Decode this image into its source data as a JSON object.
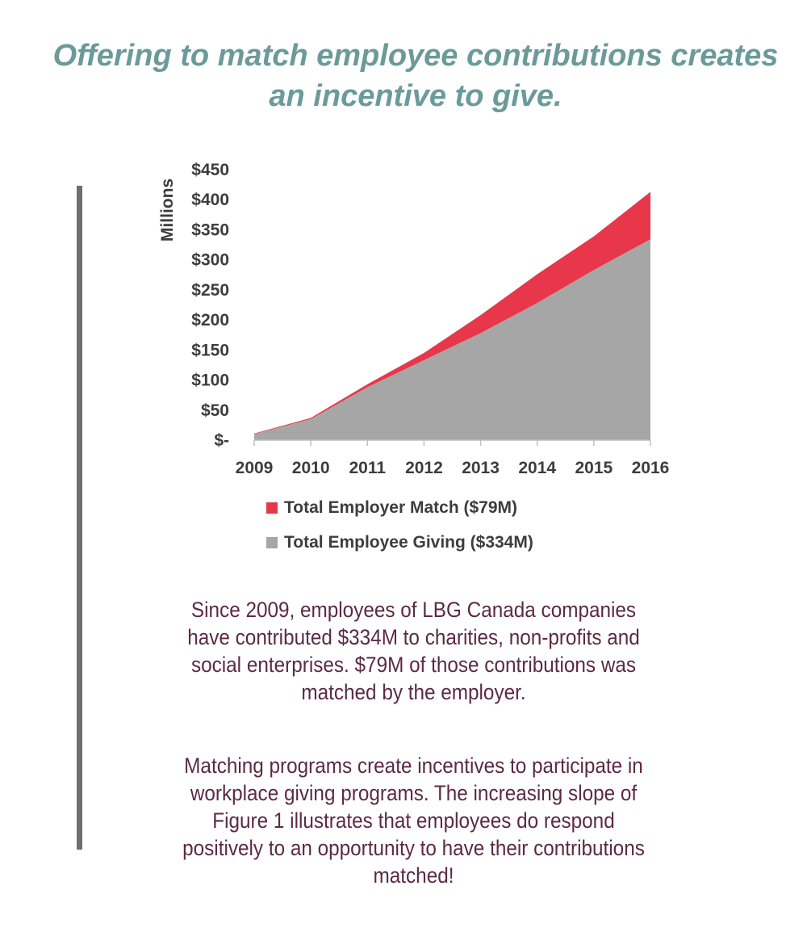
{
  "headline": {
    "line1": "Offering to match employee contributions creates",
    "line2": "an incentive to give."
  },
  "colors": {
    "headline": "#6b9a9a",
    "employer_match": "#e8374a",
    "employee_giving": "#a6a6a6",
    "body_text": "#5b2a45",
    "side_rule": "#6f6f6f"
  },
  "chart_data": {
    "type": "area",
    "stacked": true,
    "title": "",
    "xlabel": "",
    "ylabel": "Millions",
    "categories": [
      "2009",
      "2010",
      "2011",
      "2012",
      "2013",
      "2014",
      "2015",
      "2016"
    ],
    "ylim": [
      0,
      450
    ],
    "yticks": [
      0,
      50,
      100,
      150,
      200,
      250,
      300,
      350,
      400,
      450
    ],
    "ytick_labels": [
      "$-",
      "$50",
      "$100",
      "$150",
      "$200",
      "$250",
      "$300",
      "$350",
      "$400",
      "$450"
    ],
    "grid": false,
    "legend_position": "bottom",
    "series": [
      {
        "name": "Total Employee Giving ($334M)",
        "color": "#a6a6a6",
        "values": [
          10,
          35,
          88,
          133,
          178,
          228,
          283,
          334
        ]
      },
      {
        "name": "Total Employer Match ($79M)",
        "color": "#e8374a",
        "values": [
          1,
          2,
          5,
          12,
          30,
          48,
          56,
          79
        ]
      }
    ],
    "legend_order": [
      "Total Employer Match ($79M)",
      "Total Employee Giving ($334M)"
    ]
  },
  "paragraphs": {
    "p1": "Since 2009, employees of LBG Canada companies have contributed $334M to charities, non-profits and social enterprises. $79M of those contributions was matched by the employer.",
    "p2": "Matching programs create incentives to participate in workplace giving programs. The increasing slope of Figure 1 illustrates that employees do respond positively to an opportunity to have their contributions matched!"
  }
}
